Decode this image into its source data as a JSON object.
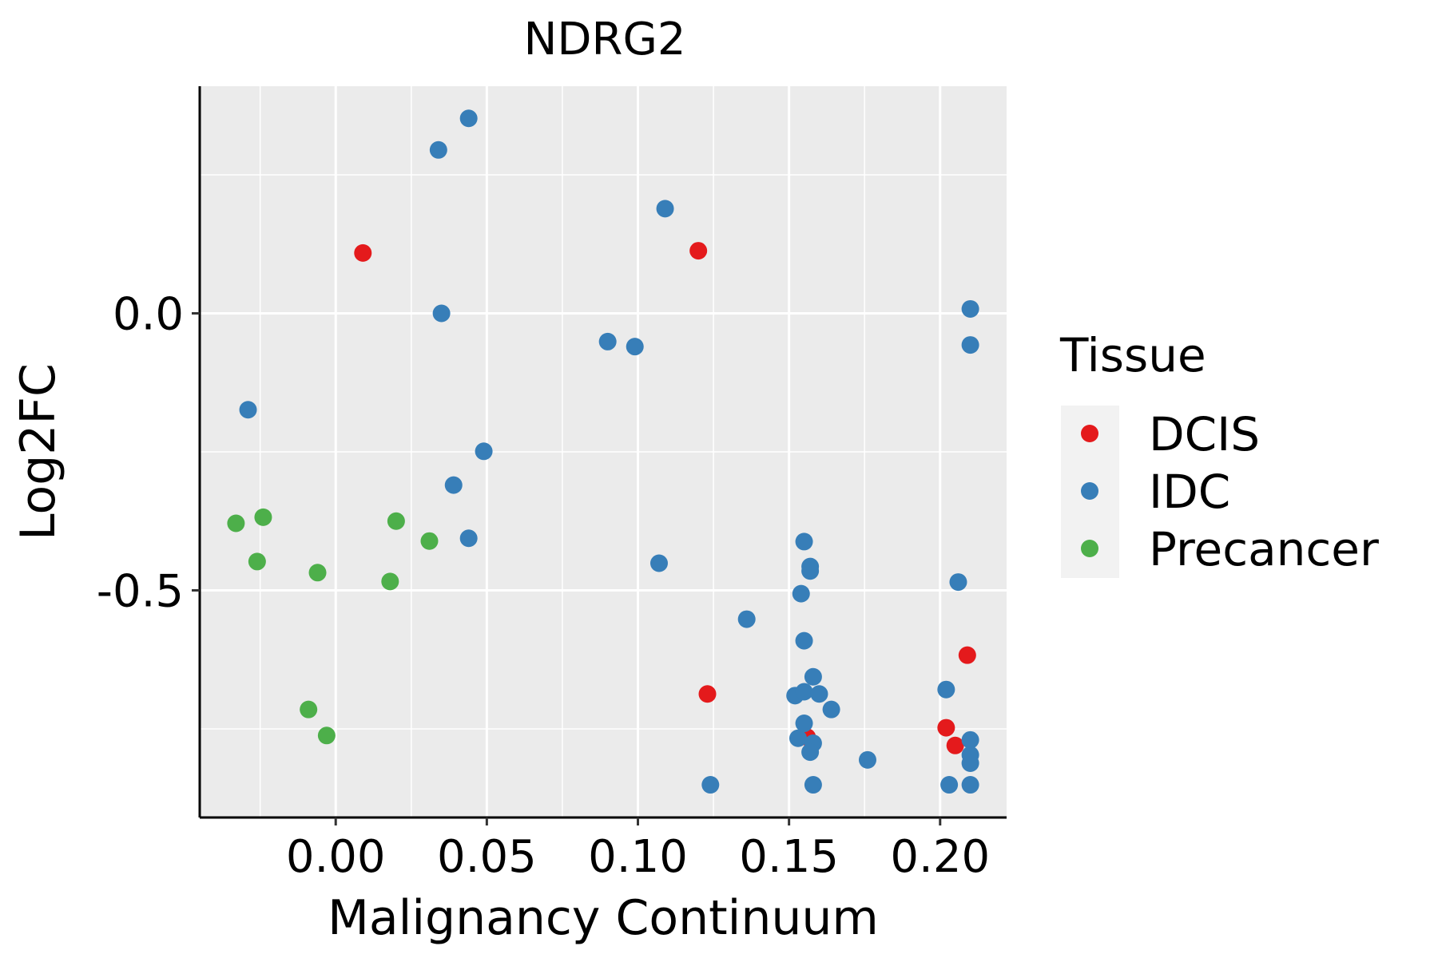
{
  "chart_data": {
    "type": "scatter",
    "title": "NDRG2",
    "xlabel": "Malignancy Continuum",
    "ylabel": "Log2FC",
    "xlim": [
      -0.045,
      0.222
    ],
    "ylim": [
      -0.91,
      0.41
    ],
    "x_ticks": [
      0.0,
      0.05,
      0.1,
      0.15,
      0.2
    ],
    "x_tick_labels": [
      "0.00",
      "0.05",
      "0.10",
      "0.15",
      "0.20"
    ],
    "y_ticks": [
      0.0,
      -0.5
    ],
    "y_tick_labels": [
      "0.0",
      "-0.5"
    ],
    "grid": true,
    "legend": {
      "title": "Tissue",
      "position": "right",
      "entries": [
        {
          "label": "DCIS",
          "color": "#E41A1C"
        },
        {
          "label": "IDC",
          "color": "#377EB8"
        },
        {
          "label": "Precancer",
          "color": "#4DAF4A"
        }
      ]
    },
    "series": [
      {
        "name": "DCIS",
        "color": "#E41A1C",
        "points": [
          [
            0.009,
            0.109
          ],
          [
            0.12,
            0.113
          ],
          [
            0.123,
            -0.687
          ],
          [
            0.156,
            -0.765
          ],
          [
            0.202,
            -0.748
          ],
          [
            0.205,
            -0.78
          ],
          [
            0.209,
            -0.617
          ]
        ]
      },
      {
        "name": "IDC",
        "color": "#377EB8",
        "points": [
          [
            0.044,
            0.352
          ],
          [
            0.034,
            0.295
          ],
          [
            0.035,
            0.0
          ],
          [
            0.109,
            0.189
          ],
          [
            0.09,
            -0.051
          ],
          [
            0.099,
            -0.06
          ],
          [
            0.21,
            0.008
          ],
          [
            0.21,
            -0.057
          ],
          [
            -0.029,
            -0.174
          ],
          [
            0.049,
            -0.249
          ],
          [
            0.039,
            -0.31
          ],
          [
            0.044,
            -0.406
          ],
          [
            0.107,
            -0.451
          ],
          [
            0.155,
            -0.412
          ],
          [
            0.157,
            -0.457
          ],
          [
            0.157,
            -0.465
          ],
          [
            0.154,
            -0.506
          ],
          [
            0.206,
            -0.485
          ],
          [
            0.136,
            -0.552
          ],
          [
            0.155,
            -0.591
          ],
          [
            0.158,
            -0.656
          ],
          [
            0.152,
            -0.69
          ],
          [
            0.155,
            -0.683
          ],
          [
            0.16,
            -0.687
          ],
          [
            0.164,
            -0.715
          ],
          [
            0.202,
            -0.679
          ],
          [
            0.155,
            -0.74
          ],
          [
            0.153,
            -0.767
          ],
          [
            0.158,
            -0.776
          ],
          [
            0.157,
            -0.792
          ],
          [
            0.176,
            -0.806
          ],
          [
            0.21,
            -0.77
          ],
          [
            0.21,
            -0.797
          ],
          [
            0.21,
            -0.812
          ],
          [
            0.124,
            -0.851
          ],
          [
            0.158,
            -0.851
          ],
          [
            0.203,
            -0.851
          ],
          [
            0.21,
            -0.851
          ]
        ]
      },
      {
        "name": "Precancer",
        "color": "#4DAF4A",
        "points": [
          [
            -0.033,
            -0.379
          ],
          [
            -0.024,
            -0.368
          ],
          [
            -0.026,
            -0.448
          ],
          [
            -0.006,
            -0.468
          ],
          [
            0.02,
            -0.375
          ],
          [
            0.031,
            -0.411
          ],
          [
            0.018,
            -0.484
          ],
          [
            -0.009,
            -0.715
          ],
          [
            -0.003,
            -0.762
          ]
        ]
      }
    ]
  }
}
